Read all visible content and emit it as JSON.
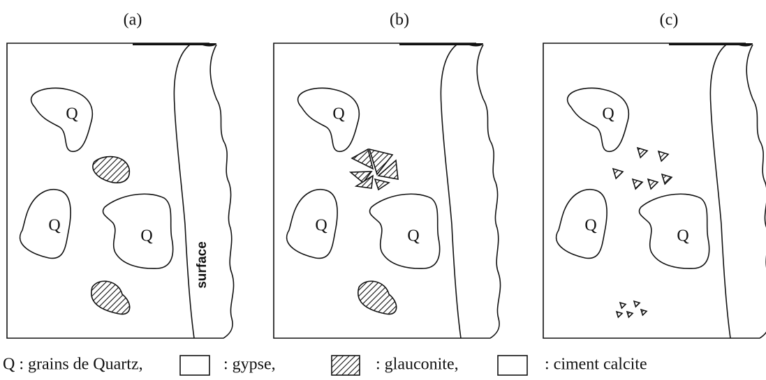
{
  "panels": [
    {
      "label": "(a)",
      "grains": [
        "Q",
        "Q",
        "Q"
      ],
      "surface": "surface"
    },
    {
      "label": "(b)",
      "grains": [
        "Q",
        "Q",
        "Q"
      ]
    },
    {
      "label": "(c)",
      "grains": [
        "Q",
        "Q",
        "Q"
      ]
    }
  ],
  "legend": [
    "Q : grains de Quartz,",
    ": gypse,",
    ": glauconite,",
    ": ciment calcite"
  ]
}
